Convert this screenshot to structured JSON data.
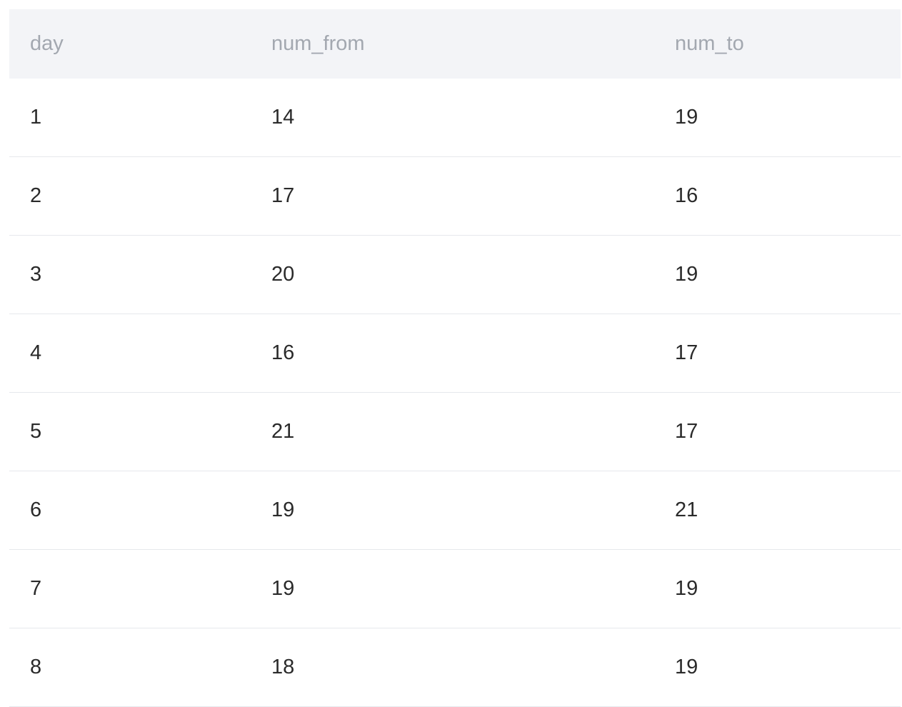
{
  "table": {
    "columns": [
      "day",
      "num_from",
      "num_to"
    ],
    "rows": [
      [
        "1",
        "14",
        "19"
      ],
      [
        "2",
        "17",
        "16"
      ],
      [
        "3",
        "20",
        "19"
      ],
      [
        "4",
        "16",
        "17"
      ],
      [
        "5",
        "21",
        "17"
      ],
      [
        "6",
        "19",
        "21"
      ],
      [
        "7",
        "19",
        "19"
      ],
      [
        "8",
        "18",
        "19"
      ]
    ]
  }
}
